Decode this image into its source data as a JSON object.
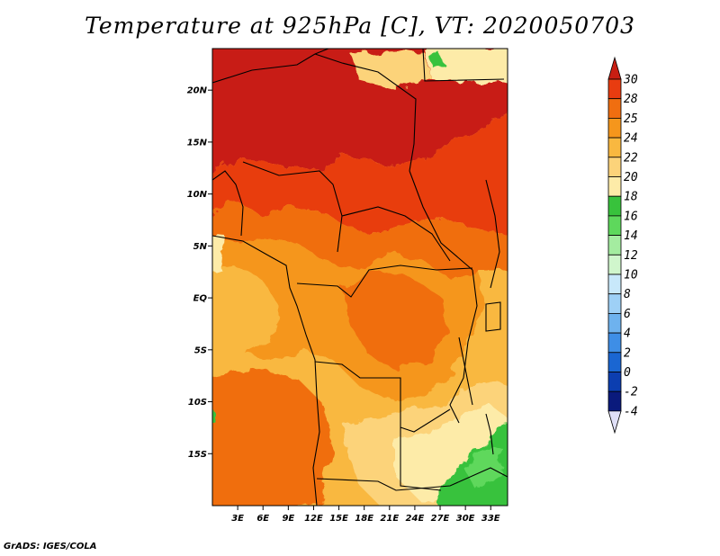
{
  "title": "Temperature at 925hPa [C], VT: 2020050703",
  "footer": "GrADS: IGES/COLA",
  "map": {
    "lat_ticks": [
      "20N",
      "15N",
      "10N",
      "5N",
      "EQ",
      "5S",
      "10S",
      "15S"
    ],
    "lon_ticks": [
      "3E",
      "6E",
      "9E",
      "12E",
      "15E",
      "18E",
      "21E",
      "24E",
      "27E",
      "30E",
      "33E"
    ],
    "lon_range": [
      0,
      35
    ],
    "lat_range": [
      -20,
      24
    ]
  },
  "colorbar": {
    "labels": [
      "30",
      "28",
      "25",
      "24",
      "22",
      "20",
      "18",
      "16",
      "14",
      "12",
      "10",
      "8",
      "6",
      "4",
      "2",
      "0",
      "-2",
      "-4"
    ],
    "colors": [
      "#c81e12",
      "#e83c10",
      "#f06e10",
      "#f5961c",
      "#f9b840",
      "#fcd37a",
      "#fdeba8",
      "#38c23c",
      "#5ed85c",
      "#a4eca0",
      "#d0f6cc",
      "#c8e8fa",
      "#9ed0f6",
      "#6eb2ee",
      "#3e8ee6",
      "#1a66d2",
      "#0c3eb0",
      "#0a1a7c",
      "#e0e0f8"
    ]
  },
  "regions": {
    "colors": {
      "hot": "#c81e12",
      "veryhot": "#e83c10",
      "warm": "#f06e10",
      "mild": "#f5961c",
      "cool": "#f9b840",
      "light": "#fcd37a",
      "pale": "#fdeba8",
      "green": "#38c23c",
      "ltgreen": "#5ed85c"
    }
  }
}
